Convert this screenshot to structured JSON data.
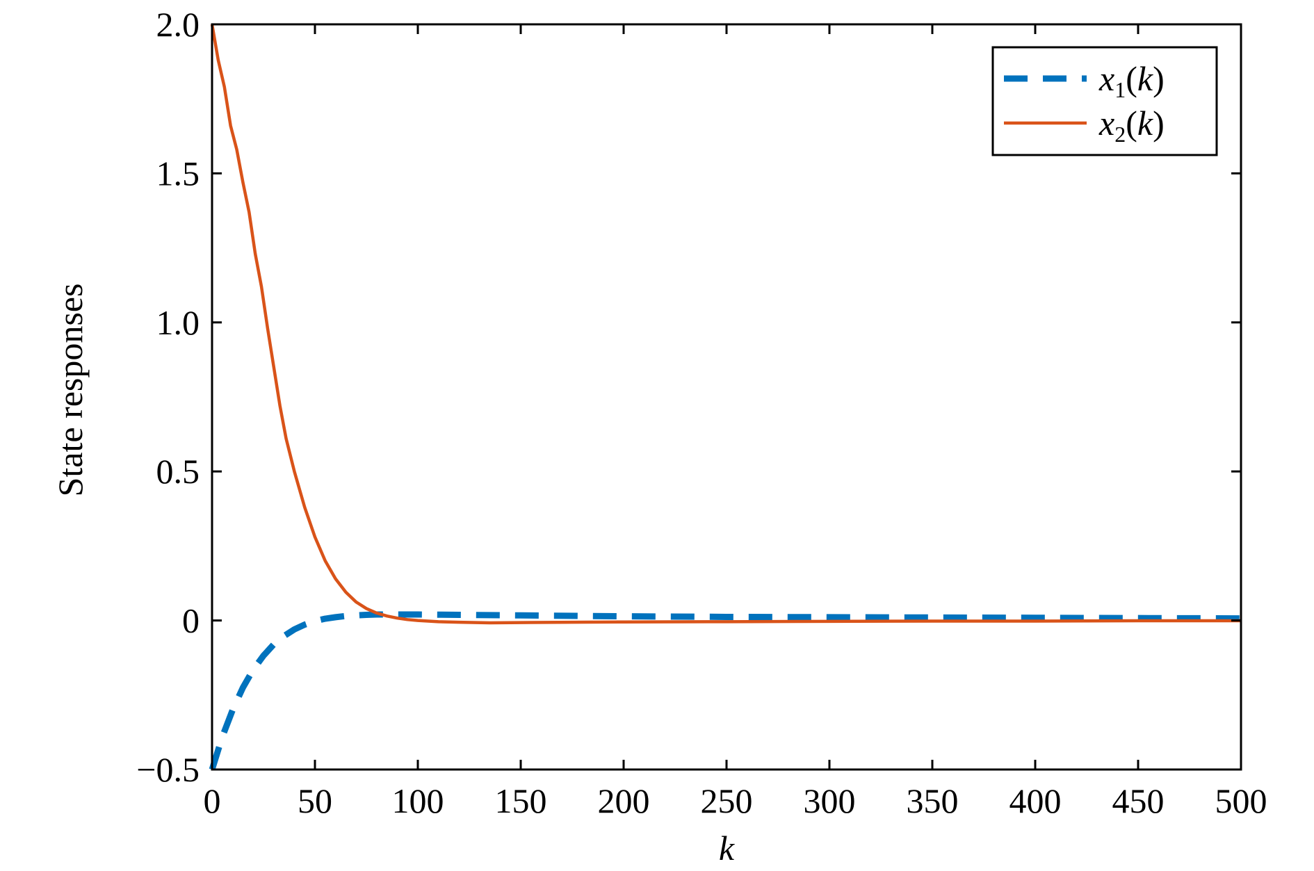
{
  "chart_data": {
    "type": "line",
    "title": "",
    "xlabel": "k",
    "ylabel": "State responses",
    "xlim": [
      0,
      500
    ],
    "ylim": [
      -0.5,
      2.0
    ],
    "xticks": [
      0,
      50,
      100,
      150,
      200,
      250,
      300,
      350,
      400,
      450,
      500
    ],
    "xtick_labels": [
      "0",
      "50",
      "100",
      "150",
      "200",
      "250",
      "300",
      "350",
      "400",
      "450",
      "500"
    ],
    "yticks": [
      -0.5,
      0,
      0.5,
      1.0,
      1.5,
      2.0
    ],
    "ytick_labels": [
      "−0.5",
      "0",
      "0.5",
      "1.0",
      "1.5",
      "2.0"
    ],
    "grid": false,
    "legend_position": "top-right",
    "series": [
      {
        "name": "x1(k)",
        "name_parts": {
          "base": "x",
          "sub": "1",
          "arg": "(k)"
        },
        "color": "#0072BD",
        "style": "dashed",
        "x": [
          0,
          5,
          10,
          15,
          20,
          25,
          30,
          35,
          40,
          45,
          50,
          55,
          60,
          65,
          70,
          75,
          80,
          90,
          100,
          120,
          150,
          200,
          250,
          300,
          350,
          400,
          450,
          500
        ],
        "y": [
          -0.5,
          -0.39,
          -0.3,
          -0.225,
          -0.165,
          -0.118,
          -0.08,
          -0.052,
          -0.03,
          -0.014,
          -0.002,
          0.006,
          0.011,
          0.015,
          0.017,
          0.019,
          0.02,
          0.02,
          0.02,
          0.019,
          0.017,
          0.014,
          0.012,
          0.011,
          0.01,
          0.009,
          0.008,
          0.007
        ]
      },
      {
        "name": "x2(k)",
        "name_parts": {
          "base": "x",
          "sub": "2",
          "arg": "(k)"
        },
        "color": "#D95319",
        "style": "solid",
        "x": [
          0,
          3,
          6,
          9,
          12,
          15,
          18,
          21,
          24,
          27,
          30,
          33,
          36,
          40,
          45,
          50,
          55,
          60,
          65,
          70,
          75,
          80,
          85,
          90,
          95,
          100,
          110,
          120,
          135,
          150,
          175,
          200,
          250,
          300,
          350,
          400,
          450,
          500
        ],
        "y": [
          2.0,
          1.88,
          1.79,
          1.66,
          1.58,
          1.47,
          1.37,
          1.23,
          1.12,
          0.98,
          0.85,
          0.72,
          0.61,
          0.5,
          0.38,
          0.28,
          0.2,
          0.14,
          0.095,
          0.062,
          0.04,
          0.025,
          0.015,
          0.008,
          0.003,
          0.0,
          -0.004,
          -0.006,
          -0.008,
          -0.007,
          -0.006,
          -0.005,
          -0.004,
          -0.003,
          -0.002,
          -0.002,
          -0.001,
          -0.001
        ]
      }
    ]
  }
}
